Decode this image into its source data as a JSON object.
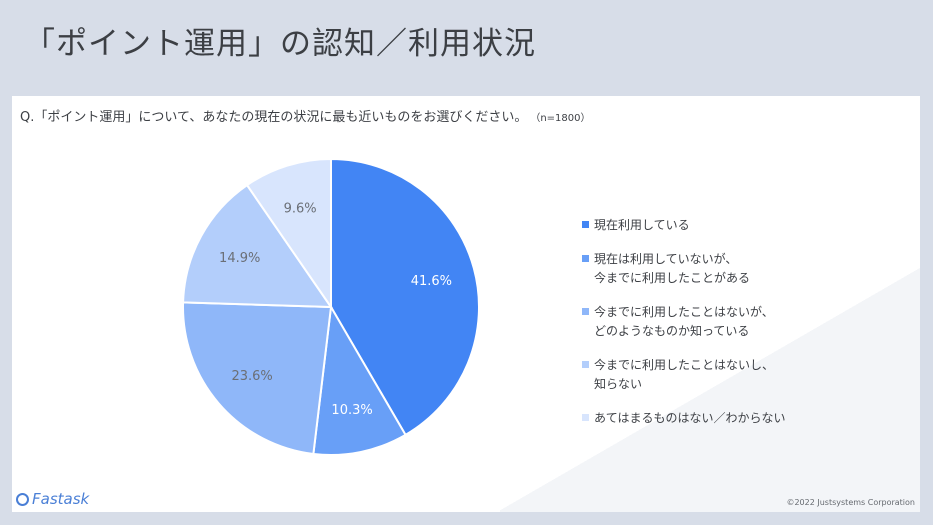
{
  "title": "「ポイント運用」の認知／利用状況",
  "question": "Q.「ポイント運用」について、あなたの現在の状況に最も近いものをお選びください。",
  "sample_size": "（n=1800）",
  "footer": {
    "logo_text": "Fastask",
    "copyright": "©2022 Justsystems Corporation"
  },
  "chart_data": {
    "type": "pie",
    "unit": "%",
    "slices": [
      {
        "label": "現在利用している",
        "value": 41.6,
        "value_label": "41.6%",
        "color": "#4285f4",
        "label_color": "#ffffff"
      },
      {
        "label": "現在は利用していないが、\n今までに利用したことがある",
        "value": 10.3,
        "value_label": "10.3%",
        "color": "#689ff7",
        "label_color": "#ffffff"
      },
      {
        "label": "今までに利用したことはないが、\nどのようなものか知っている",
        "value": 23.6,
        "value_label": "23.6%",
        "color": "#8fb7f9",
        "label_color": "#6b6f76"
      },
      {
        "label": "今までに利用したことはないし、\n知らない",
        "value": 14.9,
        "value_label": "14.9%",
        "color": "#b3cefb",
        "label_color": "#6b6f76"
      },
      {
        "label": "あてはまるものはない／わからない",
        "value": 9.6,
        "value_label": "9.6%",
        "color": "#d8e5fd",
        "label_color": "#6b6f76"
      }
    ],
    "legend_position": "right"
  }
}
